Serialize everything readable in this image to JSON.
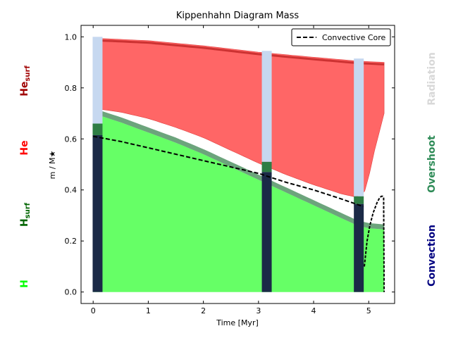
{
  "chart_data": {
    "type": "area",
    "title": "Kippenhahn Diagram Mass",
    "xlabel": "Time [Myr]",
    "ylabel": "m / M★",
    "xlim": [
      -0.22,
      5.47
    ],
    "ylim": [
      -0.045,
      1.045
    ],
    "xticks": [
      0,
      1,
      2,
      3,
      4,
      5
    ],
    "yticks": [
      0.0,
      0.2,
      0.4,
      0.6,
      0.8,
      1.0
    ],
    "grid": false,
    "legend": {
      "position": "top-right",
      "entries": [
        "Convective Core"
      ]
    },
    "series": [
      {
        "name": "Convective Core",
        "style": "dashed",
        "color": "#000000",
        "x": [
          0.0,
          0.5,
          1.0,
          1.5,
          2.0,
          2.5,
          3.0,
          3.5,
          4.0,
          4.5,
          4.9
        ],
        "values": [
          0.61,
          0.59,
          0.565,
          0.54,
          0.515,
          0.49,
          0.465,
          0.43,
          0.4,
          0.365,
          0.335
        ]
      }
    ],
    "convective_core_late": {
      "x": [
        4.92,
        4.97,
        5.02,
        5.08,
        5.15,
        5.2,
        5.23,
        5.25,
        5.27,
        5.28
      ],
      "values": [
        0.1,
        0.2,
        0.26,
        0.31,
        0.35,
        0.37,
        0.375,
        0.375,
        0.37,
        0.0
      ]
    },
    "hydrogen_envelope_top": {
      "x": [
        0.0,
        0.5,
        1.0,
        1.5,
        2.0,
        2.5,
        3.0,
        3.5,
        4.0,
        4.5,
        4.8,
        5.0,
        5.28
      ],
      "values": [
        0.7,
        0.665,
        0.625,
        0.585,
        0.54,
        0.49,
        0.44,
        0.39,
        0.34,
        0.29,
        0.26,
        0.25,
        0.245
      ]
    },
    "overshoot_band_width": 0.02,
    "helium_layer_bottom": {
      "x": [
        0.0,
        0.5,
        1.0,
        1.5,
        2.0,
        2.5,
        3.0,
        3.5,
        4.0,
        4.5,
        4.8,
        4.95,
        5.1,
        5.28
      ],
      "values": [
        0.72,
        0.705,
        0.68,
        0.645,
        0.605,
        0.555,
        0.505,
        0.46,
        0.42,
        0.385,
        0.37,
        0.4,
        0.55,
        0.7
      ]
    },
    "helium_layer_top": {
      "x": [
        0.0,
        1.0,
        2.0,
        3.0,
        4.0,
        4.8,
        5.28
      ],
      "values": [
        0.995,
        0.985,
        0.965,
        0.94,
        0.92,
        0.905,
        0.9
      ]
    },
    "snapshots": [
      {
        "x": 0.08,
        "core": 0.615,
        "overshoot": 0.66,
        "radiation_top": 1.0
      },
      {
        "x": 3.15,
        "core": 0.47,
        "overshoot": 0.51,
        "radiation_top": 0.945
      },
      {
        "x": 4.82,
        "core": 0.345,
        "overshoot": 0.375,
        "radiation_top": 0.915
      }
    ],
    "colors": {
      "hydrogen": "#66ff66",
      "hydrogen_surface": "#2e7d32",
      "helium": "#ff6666",
      "helium_surface": "#b71c1c",
      "convection": "#1b2a47",
      "overshoot": "#2e7d44",
      "radiation": "#c6d8f0"
    }
  },
  "side_labels": {
    "left": [
      {
        "text": "He",
        "sub": "surf",
        "color": "#a00000"
      },
      {
        "text": "He",
        "sub": "",
        "color": "#ff0000"
      },
      {
        "text": "H",
        "sub": "surf",
        "color": "#006400"
      },
      {
        "text": "H",
        "sub": "",
        "color": "#00ff00"
      }
    ],
    "right": [
      {
        "text": "Radiation",
        "color": "#d8d8d8"
      },
      {
        "text": "Overshoot",
        "color": "#2e8b57"
      },
      {
        "text": "Convection",
        "color": "#000080"
      }
    ]
  }
}
